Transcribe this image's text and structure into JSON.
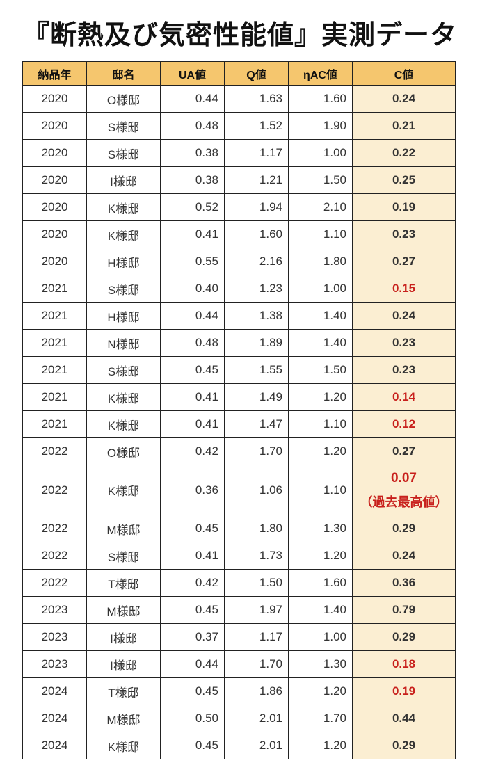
{
  "title": "『断熱及び気密性能値』実測データ",
  "table": {
    "headers": [
      "納品年",
      "邸名",
      "UA値",
      "Q値",
      "ηAC値",
      "C値"
    ],
    "rows": [
      {
        "year": "2020",
        "name": "O様邸",
        "ua": "0.44",
        "q": "1.63",
        "eta": "1.60",
        "c": "0.24",
        "highlight": false
      },
      {
        "year": "2020",
        "name": "S様邸",
        "ua": "0.48",
        "q": "1.52",
        "eta": "1.90",
        "c": "0.21",
        "highlight": false
      },
      {
        "year": "2020",
        "name": "S様邸",
        "ua": "0.38",
        "q": "1.17",
        "eta": "1.00",
        "c": "0.22",
        "highlight": false
      },
      {
        "year": "2020",
        "name": "I様邸",
        "ua": "0.38",
        "q": "1.21",
        "eta": "1.50",
        "c": "0.25",
        "highlight": false
      },
      {
        "year": "2020",
        "name": "K様邸",
        "ua": "0.52",
        "q": "1.94",
        "eta": "2.10",
        "c": "0.19",
        "highlight": false
      },
      {
        "year": "2020",
        "name": "K様邸",
        "ua": "0.41",
        "q": "1.60",
        "eta": "1.10",
        "c": "0.23",
        "highlight": false
      },
      {
        "year": "2020",
        "name": "H様邸",
        "ua": "0.55",
        "q": "2.16",
        "eta": "1.80",
        "c": "0.27",
        "highlight": false
      },
      {
        "year": "2021",
        "name": "S様邸",
        "ua": "0.40",
        "q": "1.23",
        "eta": "1.00",
        "c": "0.15",
        "highlight": true
      },
      {
        "year": "2021",
        "name": "H様邸",
        "ua": "0.44",
        "q": "1.38",
        "eta": "1.40",
        "c": "0.24",
        "highlight": false
      },
      {
        "year": "2021",
        "name": "N様邸",
        "ua": "0.48",
        "q": "1.89",
        "eta": "1.40",
        "c": "0.23",
        "highlight": false
      },
      {
        "year": "2021",
        "name": "S様邸",
        "ua": "0.45",
        "q": "1.55",
        "eta": "1.50",
        "c": "0.23",
        "highlight": false
      },
      {
        "year": "2021",
        "name": "K様邸",
        "ua": "0.41",
        "q": "1.49",
        "eta": "1.20",
        "c": "0.14",
        "highlight": true
      },
      {
        "year": "2021",
        "name": "K様邸",
        "ua": "0.41",
        "q": "1.47",
        "eta": "1.10",
        "c": "0.12",
        "highlight": true
      },
      {
        "year": "2022",
        "name": "O様邸",
        "ua": "0.42",
        "q": "1.70",
        "eta": "1.20",
        "c": "0.27",
        "highlight": false
      },
      {
        "year": "2022",
        "name": "K様邸",
        "ua": "0.36",
        "q": "1.06",
        "eta": "1.10",
        "c": "0.07",
        "highlight": true,
        "note": "（過去最高値）"
      },
      {
        "year": "2022",
        "name": "M様邸",
        "ua": "0.45",
        "q": "1.80",
        "eta": "1.30",
        "c": "0.29",
        "highlight": false
      },
      {
        "year": "2022",
        "name": "S様邸",
        "ua": "0.41",
        "q": "1.73",
        "eta": "1.20",
        "c": "0.24",
        "highlight": false
      },
      {
        "year": "2022",
        "name": "T様邸",
        "ua": "0.42",
        "q": "1.50",
        "eta": "1.60",
        "c": "0.36",
        "highlight": false
      },
      {
        "year": "2023",
        "name": "M様邸",
        "ua": "0.45",
        "q": "1.97",
        "eta": "1.40",
        "c": "0.79",
        "highlight": false
      },
      {
        "year": "2023",
        "name": "I様邸",
        "ua": "0.37",
        "q": "1.17",
        "eta": "1.00",
        "c": "0.29",
        "highlight": false
      },
      {
        "year": "2023",
        "name": "I様邸",
        "ua": "0.44",
        "q": "1.70",
        "eta": "1.30",
        "c": "0.18",
        "highlight": true
      },
      {
        "year": "2024",
        "name": "T様邸",
        "ua": "0.45",
        "q": "1.86",
        "eta": "1.20",
        "c": "0.19",
        "highlight": true
      },
      {
        "year": "2024",
        "name": "M様邸",
        "ua": "0.50",
        "q": "2.01",
        "eta": "1.70",
        "c": "0.44",
        "highlight": false
      },
      {
        "year": "2024",
        "name": "K様邸",
        "ua": "0.45",
        "q": "2.01",
        "eta": "1.20",
        "c": "0.29",
        "highlight": false
      }
    ]
  },
  "colors": {
    "header_bg": "#f5c66e",
    "c_column_bg": "#fbeed2",
    "highlight_text": "#c8201c"
  }
}
